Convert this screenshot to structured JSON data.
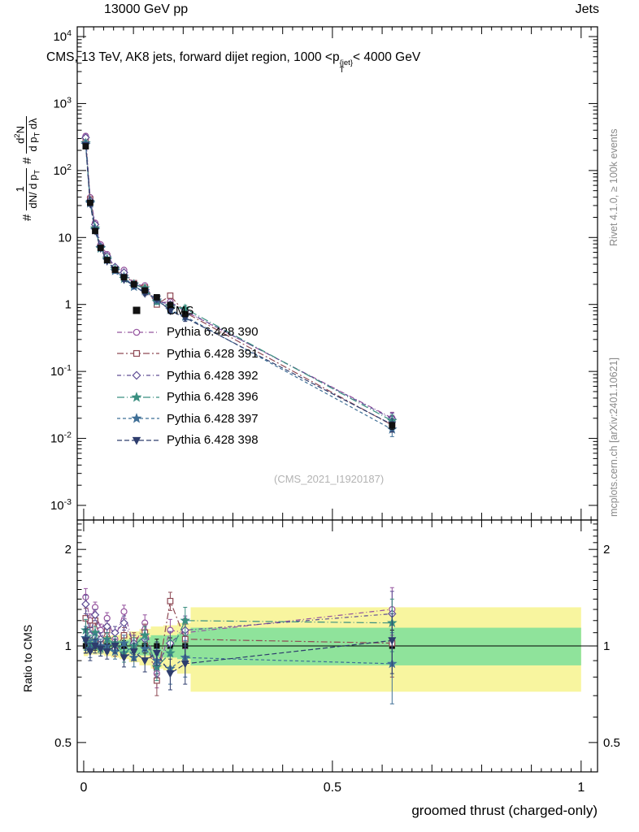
{
  "header": {
    "left": "13000 GeV pp",
    "right": "Jets"
  },
  "side": {
    "top": "Rivet 4.1.0, ≥ 100k events",
    "bottom": "mcplots.cern.ch [arXiv:2401.10621]"
  },
  "watermark": "(CMS_2021_I1920187)",
  "chart_data": {
    "type": "line",
    "title_html": "CMS, 13 TeV, AK8 jets, forward dijet region, 1000 &lt;p<span class='stk'><span>{jet}</span><span>T</span></span>&lt; 4000 GeV",
    "xlabel": "groomed thrust (charged-only)",
    "ratio_ylabel": "Ratio to CMS",
    "ylabel_parts": {
      "hash1": "#",
      "f1num": "1",
      "f1den_html": "dN/ d p<sub>T</sub>",
      "hash2": "#",
      "f2num_html": "d<sup>2</sup>N",
      "f2den_html": "d p<sub>T</sub> dλ"
    },
    "axes": {
      "x": {
        "min": -0.013,
        "max": 1.033,
        "majors": [
          0,
          0.5,
          1
        ],
        "major_labels": [
          "0",
          "0.5",
          "1"
        ]
      },
      "y_main": {
        "scale": "log",
        "exp_min": -3,
        "exp_max": 4
      },
      "y_ratio": {
        "scale": "log",
        "min": 0.405,
        "max": 2.47,
        "labels": [
          0.5,
          1,
          2
        ],
        "label_texts": [
          "0.5",
          "1",
          "2"
        ]
      }
    },
    "x": [
      0.004,
      0.013,
      0.023,
      0.034,
      0.047,
      0.063,
      0.081,
      0.101,
      0.123,
      0.147,
      0.174,
      0.204,
      0.62
    ],
    "cms": {
      "label": "CMS",
      "color": "#111111",
      "marker": "square",
      "values": [
        230,
        33,
        12.5,
        7.0,
        4.6,
        3.3,
        2.55,
        2.0,
        1.62,
        1.28,
        0.98,
        0.72,
        0.0155
      ],
      "err_frac": [
        0.05,
        0.04,
        0.03,
        0.03,
        0.03,
        0.03,
        0.04,
        0.04,
        0.05,
        0.05,
        0.06,
        0.08,
        0.12
      ]
    },
    "ratio_err": [
      0.09,
      0.06,
      0.05,
      0.05,
      0.05,
      0.05,
      0.06,
      0.06,
      0.07,
      0.08,
      0.09,
      0.12,
      0.22
    ],
    "series": [
      {
        "label": "Pythia 6.428 390",
        "color": "#95539e",
        "marker": "circle",
        "filled": false,
        "dash": "6 3 1 3",
        "ratio": [
          1.42,
          1.2,
          1.32,
          1.12,
          1.22,
          1.05,
          1.28,
          1.0,
          1.18,
          0.82,
          1.12,
          1.1,
          1.3
        ]
      },
      {
        "label": "Pythia 6.428 391",
        "color": "#8f4a55",
        "marker": "square",
        "filled": false,
        "dash": "8 3 2 3",
        "ratio": [
          1.22,
          1.12,
          1.2,
          1.02,
          1.12,
          0.98,
          1.08,
          1.04,
          1.1,
          0.78,
          1.38,
          1.05,
          1.02
        ]
      },
      {
        "label": "Pythia 6.428 392",
        "color": "#5f4d94",
        "marker": "diamond",
        "filled": false,
        "dash": "5 3 1 3",
        "ratio": [
          1.35,
          1.08,
          1.25,
          1.05,
          1.15,
          1.1,
          1.18,
          1.02,
          1.05,
          0.88,
          1.02,
          1.12,
          1.26
        ]
      },
      {
        "label": "Pythia 6.428 396",
        "color": "#3a8f80",
        "marker": "star",
        "filled": true,
        "dash": "9 3 1 3",
        "ratio": [
          1.12,
          1.02,
          1.1,
          0.98,
          1.05,
          1.02,
          0.95,
          1.0,
          1.08,
          0.86,
          0.95,
          1.2,
          1.18
        ]
      },
      {
        "label": "Pythia 6.428 397",
        "color": "#3f6f96",
        "marker": "star",
        "filled": true,
        "dash": "4 3",
        "ratio": [
          1.06,
          0.98,
          1.04,
          1.0,
          1.0,
          0.96,
          1.02,
          0.92,
          0.98,
          0.9,
          0.85,
          0.92,
          0.88
        ]
      },
      {
        "label": "Pythia 6.428 398",
        "color": "#2e3d6d",
        "marker": "triangle-down",
        "filled": true,
        "dash": "6 3",
        "ratio": [
          1.04,
          0.96,
          1.0,
          0.98,
          0.96,
          1.0,
          0.92,
          0.96,
          0.9,
          0.95,
          0.82,
          0.88,
          1.04
        ]
      }
    ],
    "bands": [
      {
        "x0": 0.0,
        "x1": 0.009,
        "ylo": 0.93,
        "yhi": 1.07,
        "glo": 0.965,
        "ghi": 1.035
      },
      {
        "x0": 0.009,
        "x1": 0.018,
        "ylo": 0.94,
        "yhi": 1.06,
        "glo": 0.97,
        "ghi": 1.03
      },
      {
        "x0": 0.018,
        "x1": 0.029,
        "ylo": 0.94,
        "yhi": 1.06,
        "glo": 0.97,
        "ghi": 1.03
      },
      {
        "x0": 0.029,
        "x1": 0.041,
        "ylo": 0.94,
        "yhi": 1.06,
        "glo": 0.97,
        "ghi": 1.03
      },
      {
        "x0": 0.041,
        "x1": 0.055,
        "ylo": 0.93,
        "yhi": 1.07,
        "glo": 0.965,
        "ghi": 1.035
      },
      {
        "x0": 0.055,
        "x1": 0.072,
        "ylo": 0.92,
        "yhi": 1.08,
        "glo": 0.96,
        "ghi": 1.04
      },
      {
        "x0": 0.072,
        "x1": 0.091,
        "ylo": 0.91,
        "yhi": 1.09,
        "glo": 0.955,
        "ghi": 1.045
      },
      {
        "x0": 0.091,
        "x1": 0.112,
        "ylo": 0.89,
        "yhi": 1.11,
        "glo": 0.945,
        "ghi": 1.055
      },
      {
        "x0": 0.112,
        "x1": 0.135,
        "ylo": 0.87,
        "yhi": 1.13,
        "glo": 0.935,
        "ghi": 1.065
      },
      {
        "x0": 0.135,
        "x1": 0.16,
        "ylo": 0.85,
        "yhi": 1.15,
        "glo": 0.92,
        "ghi": 1.08
      },
      {
        "x0": 0.16,
        "x1": 0.188,
        "ylo": 0.84,
        "yhi": 1.16,
        "glo": 0.92,
        "ghi": 1.08
      },
      {
        "x0": 0.188,
        "x1": 0.215,
        "ylo": 0.82,
        "yhi": 1.18,
        "glo": 0.91,
        "ghi": 1.09
      },
      {
        "x0": 0.215,
        "x1": 1.0,
        "ylo": 0.72,
        "yhi": 1.32,
        "glo": 0.87,
        "ghi": 1.14
      }
    ],
    "band_colors": {
      "yellow": "#f8f59f",
      "green": "#8fe39b"
    }
  }
}
